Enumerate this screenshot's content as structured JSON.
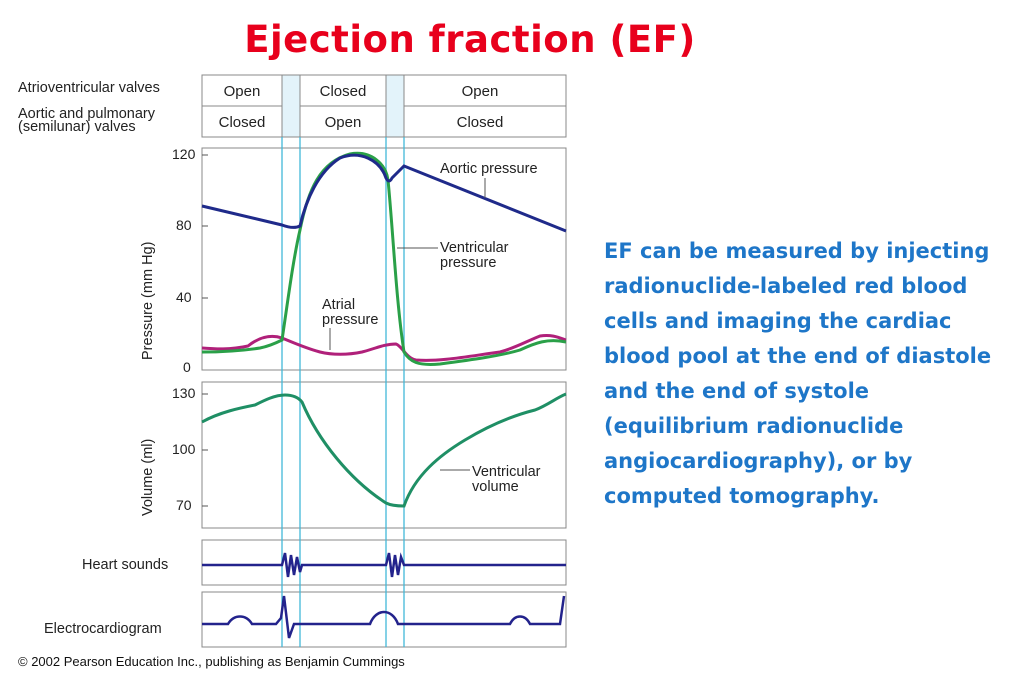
{
  "slide": {
    "title": "Ejection fraction (EF)",
    "description": "EF can be measured by injecting radionuclide-labeled red blood cells and imaging the cardiac blood pool at the end of diastole and the end of systole (equilibrium radionuclide angiocardiography), or by computed tomography."
  },
  "diagram": {
    "valves": {
      "av_label": "Atrioventricular valves",
      "semilunar_label_1": "Aortic and pulmonary",
      "semilunar_label_2": "(semilunar) valves",
      "av_states": [
        "Open",
        "Closed",
        "Open"
      ],
      "semilunar_states": [
        "Closed",
        "Open",
        "Closed"
      ]
    },
    "pressure_panel": {
      "ylabel": "Pressure (mm Hg)",
      "ticks": [
        "120",
        "80",
        "40",
        "0"
      ],
      "aortic_label": "Aortic pressure",
      "ventricular_label_1": "Ventricular",
      "ventricular_label_2": "pressure",
      "atrial_label_1": "Atrial",
      "atrial_label_2": "pressure"
    },
    "volume_panel": {
      "ylabel": "Volume (ml)",
      "ticks": [
        "130",
        "100",
        "70"
      ],
      "ventricular_volume_label_1": "Ventricular",
      "ventricular_volume_label_2": "volume"
    },
    "heart_sounds_label": "Heart sounds",
    "ecg_label": "Electrocardiogram",
    "copyright": "© 2002 Pearson Education Inc., publishing as Benjamin Cummings",
    "colors": {
      "aortic": "#1f2a8a",
      "ventricular": "#2aa048",
      "atrial": "#b0207a",
      "volume": "#1f8f65",
      "trace": "#23238c",
      "phase_line": "#42b8d8",
      "title": "#e8001c",
      "description": "#1e76c8"
    }
  }
}
